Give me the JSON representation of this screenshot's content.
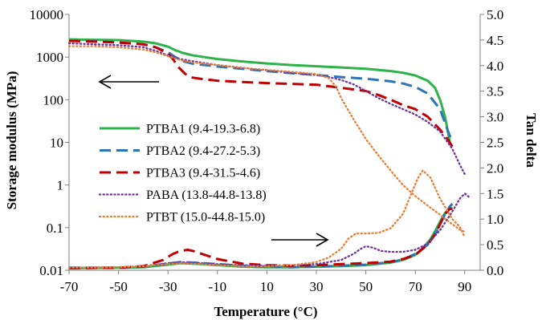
{
  "chart_data": {
    "type": "line",
    "xlabel": "Temperature (°C)",
    "ylabel_left": "Storage modulus (MPa)",
    "ylabel_right": "Tan delta",
    "x_ticks": [
      "-70",
      "-50",
      "-30",
      "-10",
      "10",
      "30",
      "50",
      "70",
      "90"
    ],
    "y_left_ticks": [
      "0.01",
      "0.1",
      "1",
      "10",
      "100",
      "1000",
      "10000"
    ],
    "y_right_ticks": [
      "0.0",
      "0.5",
      "1.0",
      "1.5",
      "2.0",
      "2.5",
      "3.0",
      "3.5",
      "4.0",
      "4.5",
      "5.0"
    ],
    "xlim": [
      -70,
      95
    ],
    "ylim_left": [
      0.01,
      10000
    ],
    "y_left_scale": "log",
    "ylim_right": [
      0,
      5
    ],
    "grid": false,
    "legend_position": "left-center",
    "series": [
      {
        "name": "PTBA1 (9.4-19.3-6.8)",
        "color": "#2db34a",
        "dash": "solid",
        "modulus": {
          "x": [
            -70,
            -60,
            -50,
            -40,
            -35,
            -30,
            -27,
            -24,
            -20,
            -10,
            0,
            10,
            20,
            30,
            40,
            50,
            60,
            65,
            70,
            75,
            78,
            80,
            82,
            84
          ],
          "y": [
            2600,
            2550,
            2500,
            2300,
            2100,
            1750,
            1450,
            1250,
            1100,
            900,
            790,
            710,
            650,
            610,
            570,
            530,
            470,
            430,
            370,
            280,
            190,
            100,
            40,
            10
          ]
        },
        "tan_delta": {
          "x": [
            -70,
            -50,
            -40,
            -30,
            -25,
            -20,
            -10,
            0,
            10,
            20,
            30,
            40,
            50,
            60,
            65,
            70,
            73,
            76,
            78,
            80,
            82,
            84,
            85
          ],
          "y": [
            0.04,
            0.05,
            0.06,
            0.11,
            0.14,
            0.13,
            0.1,
            0.07,
            0.06,
            0.06,
            0.07,
            0.08,
            0.1,
            0.15,
            0.2,
            0.3,
            0.43,
            0.6,
            0.76,
            0.95,
            1.12,
            1.2,
            1.22
          ]
        }
      },
      {
        "name": "PTBA2 (9.4-27.2-5.3)",
        "color": "#2e75b6",
        "dash": "long-dash",
        "modulus": {
          "x": [
            -70,
            -60,
            -50,
            -40,
            -35,
            -30,
            -27,
            -24,
            -20,
            -10,
            0,
            10,
            20,
            30,
            40,
            50,
            60,
            65,
            70,
            75,
            80,
            83,
            85
          ],
          "y": [
            2400,
            2350,
            2200,
            2000,
            1700,
            1300,
            1000,
            800,
            700,
            600,
            530,
            470,
            420,
            380,
            340,
            310,
            270,
            240,
            200,
            140,
            60,
            20,
            10
          ]
        },
        "tan_delta": {
          "x": [
            -70,
            -50,
            -40,
            -30,
            -25,
            -20,
            -10,
            0,
            10,
            20,
            30,
            40,
            50,
            60,
            65,
            70,
            75,
            78,
            80,
            82,
            84,
            85
          ],
          "y": [
            0.05,
            0.05,
            0.07,
            0.13,
            0.16,
            0.15,
            0.12,
            0.09,
            0.07,
            0.06,
            0.07,
            0.09,
            0.11,
            0.16,
            0.21,
            0.32,
            0.5,
            0.7,
            0.9,
            1.1,
            1.25,
            1.3
          ]
        }
      },
      {
        "name": "PTBA3 (9.4-31.5-4.6)",
        "color": "#c00000",
        "dash": "long-dash",
        "modulus": {
          "x": [
            -70,
            -60,
            -50,
            -40,
            -35,
            -30,
            -28,
            -26,
            -23,
            -20,
            -15,
            -10,
            0,
            10,
            20,
            30,
            40,
            50,
            55,
            60,
            65,
            70,
            75,
            80,
            83,
            85
          ],
          "y": [
            2400,
            2300,
            2200,
            2000,
            1700,
            1200,
            900,
            600,
            400,
            330,
            300,
            280,
            260,
            245,
            235,
            225,
            190,
            160,
            130,
            100,
            75,
            60,
            40,
            20,
            12,
            8
          ]
        },
        "tan_delta": {
          "x": [
            -70,
            -50,
            -40,
            -32,
            -28,
            -25,
            -22,
            -20,
            -15,
            -10,
            0,
            10,
            20,
            30,
            40,
            50,
            60,
            65,
            70,
            75,
            78,
            80,
            82,
            84,
            85
          ],
          "y": [
            0.04,
            0.05,
            0.08,
            0.2,
            0.32,
            0.38,
            0.4,
            0.38,
            0.3,
            0.22,
            0.13,
            0.1,
            0.09,
            0.1,
            0.12,
            0.14,
            0.17,
            0.22,
            0.3,
            0.5,
            0.7,
            0.9,
            1.1,
            1.2,
            1.2
          ]
        }
      },
      {
        "name": "PABA (13.8-44.8-13.8)",
        "color": "#7030a0",
        "dash": "dotted",
        "modulus": {
          "x": [
            -70,
            -60,
            -50,
            -40,
            -35,
            -30,
            -25,
            -20,
            -10,
            0,
            10,
            20,
            30,
            35,
            40,
            45,
            50,
            55,
            60,
            65,
            70,
            75,
            80,
            85,
            88,
            90
          ],
          "y": [
            2100,
            2000,
            1900,
            1700,
            1400,
            1100,
            900,
            800,
            650,
            560,
            490,
            430,
            380,
            340,
            290,
            230,
            160,
            110,
            80,
            60,
            45,
            30,
            18,
            7,
            3,
            1.8
          ]
        },
        "tan_delta": {
          "x": [
            -70,
            -50,
            -40,
            -30,
            -25,
            -20,
            -10,
            0,
            10,
            20,
            30,
            40,
            45,
            48,
            50,
            53,
            56,
            60,
            65,
            70,
            75,
            80,
            85,
            88,
            90,
            92
          ],
          "y": [
            0.05,
            0.06,
            0.08,
            0.14,
            0.16,
            0.15,
            0.12,
            0.1,
            0.09,
            0.1,
            0.12,
            0.2,
            0.32,
            0.42,
            0.47,
            0.44,
            0.38,
            0.36,
            0.36,
            0.4,
            0.52,
            0.78,
            1.15,
            1.4,
            1.5,
            1.42
          ]
        }
      },
      {
        "name": "PTBT  (15.0-44.8-15.0)",
        "color": "#ed7d31",
        "dash": "dotted",
        "modulus": {
          "x": [
            -70,
            -60,
            -50,
            -40,
            -35,
            -30,
            -25,
            -20,
            -10,
            0,
            10,
            20,
            30,
            35,
            38,
            40,
            45,
            50,
            55,
            60,
            65,
            70,
            75,
            80,
            85,
            88,
            90
          ],
          "y": [
            1800,
            1800,
            1700,
            1500,
            1300,
            1050,
            850,
            750,
            650,
            560,
            500,
            450,
            400,
            320,
            200,
            110,
            35,
            12,
            5,
            2.2,
            1.0,
            0.55,
            0.33,
            0.2,
            0.12,
            0.09,
            0.08
          ]
        },
        "tan_delta": {
          "x": [
            -70,
            -50,
            -40,
            -30,
            -25,
            -20,
            -10,
            0,
            10,
            20,
            30,
            35,
            40,
            43,
            46,
            50,
            55,
            60,
            65,
            68,
            71,
            73,
            76,
            80,
            85,
            88,
            90
          ],
          "y": [
            0.05,
            0.06,
            0.08,
            0.12,
            0.14,
            0.13,
            0.1,
            0.08,
            0.08,
            0.1,
            0.16,
            0.25,
            0.42,
            0.62,
            0.72,
            0.72,
            0.73,
            0.82,
            1.1,
            1.45,
            1.8,
            1.95,
            1.82,
            1.4,
            1.0,
            0.85,
            0.65
          ]
        }
      }
    ],
    "annotations": [
      {
        "type": "arrow",
        "direction": "left",
        "points_to_axis": "left"
      },
      {
        "type": "arrow",
        "direction": "right",
        "points_to_axis": "right"
      }
    ]
  }
}
